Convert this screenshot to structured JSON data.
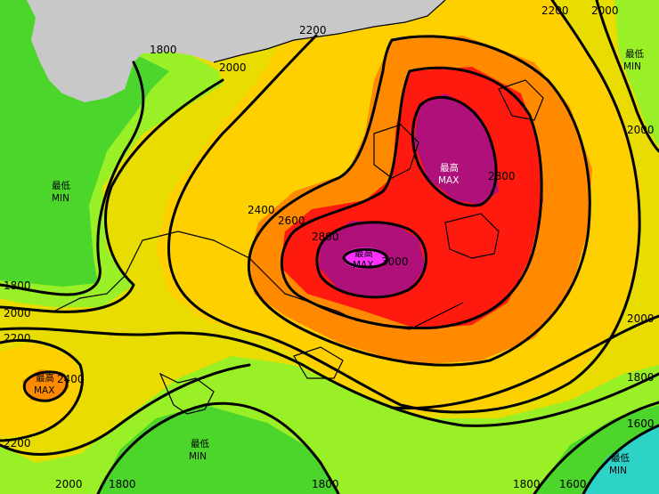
{
  "colors": {
    "land_grey": "#c8c8c8",
    "band_lt1600": "#2ed3c8",
    "band_1600_1800": "#4cd62c",
    "band_1800_2000": "#9af026",
    "band_2000_2200": "#e8dc00",
    "band_2200_2400": "#ffd000",
    "band_2400_2600": "#ff8a00",
    "band_2600_2800": "#ff1a10",
    "band_2800_3000": "#b0107a",
    "band_gt3000": "#ff30ff"
  },
  "contour_labels": {
    "l1800_top": "1800",
    "l2000_top": "2000",
    "l2200_top": "2200",
    "l2200_tr": "2200",
    "l2000_tr": "2000",
    "l2000_right": "2000",
    "l2400_mid": "2400",
    "l2600_mid": "2600",
    "l2800_mid": "2800",
    "l3000_mid": "3000",
    "l2800_ne": "2800",
    "l1800_left": "1800",
    "l2000_left": "2000",
    "l2200_left": "2200",
    "l2400_left": "2400",
    "l2200_bl": "2200",
    "l2000_right2": "2000",
    "l1800_right": "1800",
    "l1600_right": "1600",
    "l2000_bottom": "2000",
    "l1800_bottom1": "1800",
    "l1800_bottom2": "1800",
    "l1800_bottom3": "1800",
    "l1600_bottom": "1600"
  },
  "extrema": [
    {
      "cn": "最低",
      "en": "MIN"
    },
    {
      "cn": "最低",
      "en": "MIN"
    },
    {
      "cn": "最高",
      "en": "MAX"
    },
    {
      "cn": "最高",
      "en": "MAX"
    },
    {
      "cn": "最高",
      "en": "MAX"
    },
    {
      "cn": "最低",
      "en": "MIN"
    },
    {
      "cn": "最低",
      "en": "MIN"
    }
  ]
}
